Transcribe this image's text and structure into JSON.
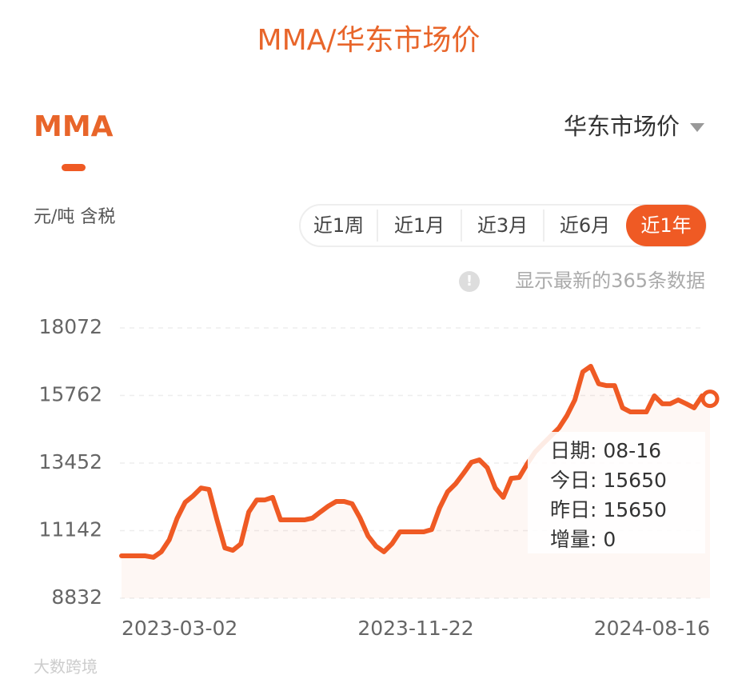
{
  "header": {
    "title": "MMA/华东市场价"
  },
  "tab": "MMA",
  "dropdown": "华东市场价",
  "unit": "元/吨 含税",
  "ranges": [
    "近1周",
    "近1月",
    "近3月",
    "近6月",
    "近1年"
  ],
  "note": "显示最新的365条数据",
  "tooltip": [
    "日期: 08-16",
    "今日: 15650",
    "昨日: 15650",
    "增量: 0"
  ],
  "watermark": "大数跨境",
  "chart_data": {
    "type": "line",
    "categories": [
      "2023-03-02",
      null,
      null,
      null,
      null,
      null,
      null,
      null,
      null,
      null,
      null,
      null,
      null,
      null,
      null,
      null,
      null,
      null,
      null,
      null,
      null,
      null,
      null,
      null,
      null,
      null,
      null,
      null,
      null,
      null,
      null,
      null,
      null,
      null,
      null,
      null,
      null,
      "2023-11-22",
      null,
      null,
      null,
      null,
      null,
      null,
      null,
      null,
      null,
      null,
      null,
      null,
      null,
      null,
      null,
      null,
      null,
      null,
      null,
      null,
      null,
      null,
      null,
      null,
      null,
      null,
      null,
      null,
      null,
      null,
      null,
      null,
      null,
      null,
      null,
      null,
      "2024-08-16"
    ],
    "series": [
      {
        "name": "MMA",
        "color": "#ef5a24",
        "values": [
          10280,
          10280,
          10280,
          10280,
          10230,
          10420,
          10830,
          11570,
          12110,
          12330,
          12600,
          12550,
          11510,
          10550,
          10470,
          10690,
          11780,
          12190,
          12190,
          12280,
          11510,
          11510,
          11510,
          11510,
          11570,
          11780,
          11980,
          12140,
          12140,
          12060,
          11570,
          10960,
          10610,
          10420,
          10690,
          11100,
          11100,
          11100,
          11100,
          11180,
          11920,
          12470,
          12740,
          13100,
          13480,
          13560,
          13290,
          12600,
          12280,
          12930,
          12960,
          13420,
          13830,
          14110,
          14380,
          14650,
          15070,
          15610,
          16570,
          16760,
          16160,
          16100,
          16100,
          15340,
          15200,
          15200,
          15200,
          15750,
          15480,
          15480,
          15610,
          15480,
          15340,
          15750,
          15650
        ]
      }
    ],
    "ylim": [
      8832,
      18072
    ],
    "yticks": [
      8832,
      11142,
      13452,
      15762,
      18072
    ],
    "grid": true
  }
}
